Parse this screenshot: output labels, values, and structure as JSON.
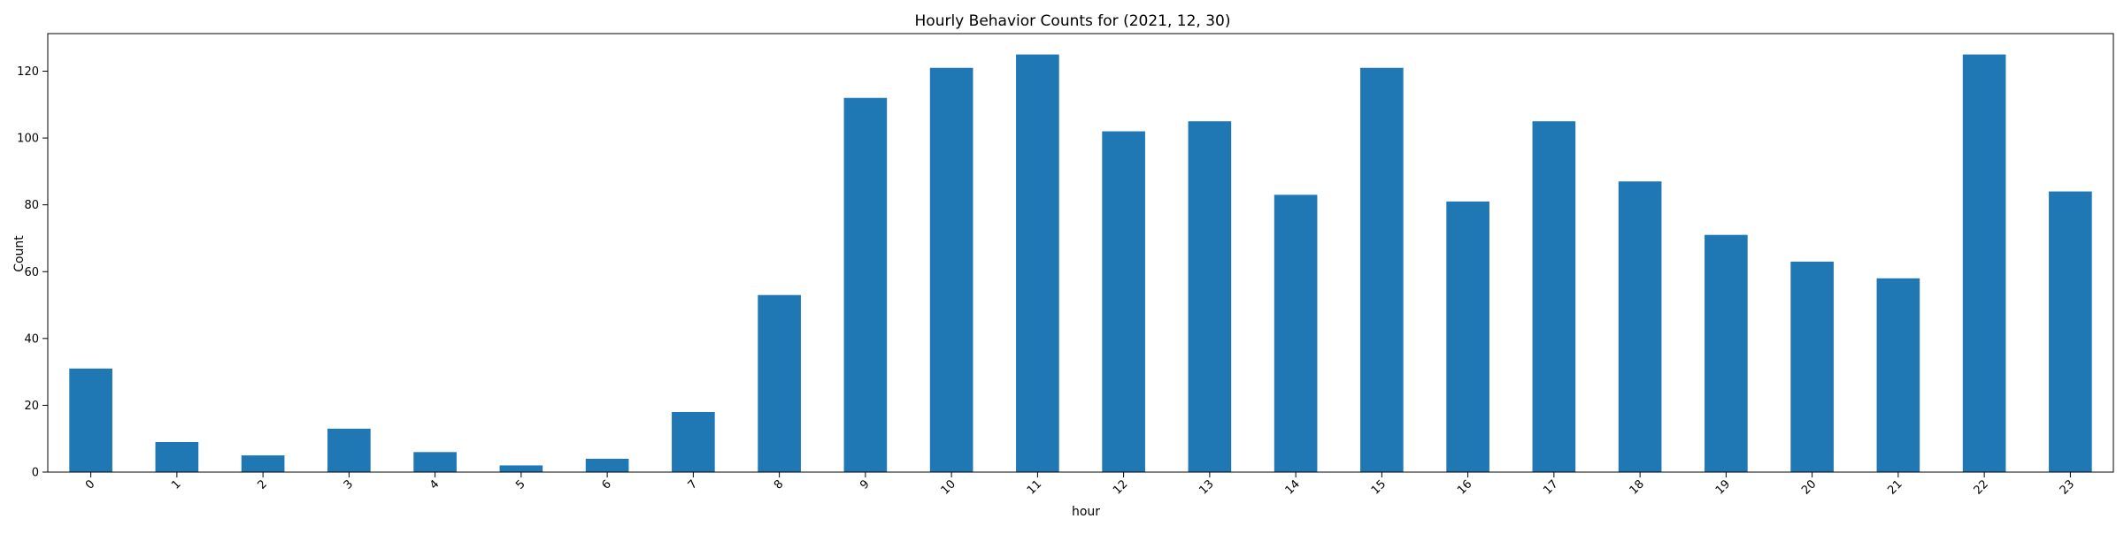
{
  "chart_data": {
    "type": "bar",
    "title": "Hourly Behavior Counts for (2021, 12, 30)",
    "xlabel": "hour",
    "ylabel": "Count",
    "categories": [
      "0",
      "1",
      "2",
      "3",
      "4",
      "5",
      "6",
      "7",
      "8",
      "9",
      "10",
      "11",
      "12",
      "13",
      "14",
      "15",
      "16",
      "17",
      "18",
      "19",
      "20",
      "21",
      "22",
      "23"
    ],
    "values": [
      31,
      9,
      5,
      13,
      6,
      2,
      4,
      18,
      53,
      112,
      121,
      125,
      102,
      105,
      83,
      121,
      81,
      105,
      87,
      71,
      63,
      58,
      125,
      84
    ],
    "ylim": [
      0,
      131.25
    ],
    "yticks": [
      0,
      20,
      40,
      60,
      80,
      100,
      120
    ],
    "bar_color": "#1f77b4",
    "grid": false,
    "legend": "none"
  }
}
